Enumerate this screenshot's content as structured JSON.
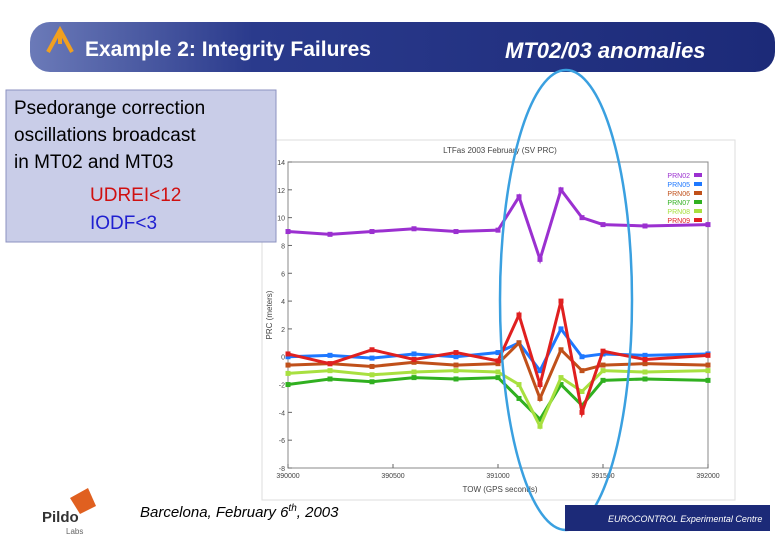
{
  "header": {
    "title": "Example 2: Integrity Failures",
    "subtitle": "MT02/03 anomalies"
  },
  "callout": {
    "lines": [
      "Psedorange correction",
      "oscillations broadcast",
      "in MT02 and MT03"
    ],
    "items": [
      "UDREI<12",
      "IODF<3"
    ]
  },
  "footer": {
    "place_date": "Barcelona, February 6",
    "ordinal": "th",
    "year": ", 2003"
  },
  "logos": {
    "left": "Pildo",
    "left_sub": "Labs",
    "right": "EUROCONTROL Experimental Centre"
  },
  "chart_data": {
    "type": "scatter",
    "title": "LTFas 2003 February (SV PRC)",
    "x_label": "TOW (GPS seconds)",
    "y_label": "PRC (meters)",
    "x": [
      390000,
      390200,
      390400,
      390600,
      390800,
      391000,
      391100,
      391200,
      391300,
      391400,
      391500,
      391700,
      392000
    ],
    "series": [
      {
        "name": "PRN02",
        "color": "#9b30d0",
        "values": [
          9,
          8.8,
          9,
          9.2,
          9,
          9.1,
          11.5,
          7,
          12,
          10,
          9.5,
          9.4,
          9.5
        ]
      },
      {
        "name": "PRN05",
        "color": "#1e78ff",
        "values": [
          0,
          0.1,
          -0.1,
          0.2,
          0,
          0.3,
          1,
          -1,
          2,
          0,
          0.2,
          0.1,
          0.2
        ]
      },
      {
        "name": "PRN06",
        "color": "#c0501a",
        "values": [
          -0.6,
          -0.5,
          -0.7,
          -0.4,
          -0.6,
          -0.5,
          1,
          -3,
          0.5,
          -1,
          -0.6,
          -0.5,
          -0.6
        ]
      },
      {
        "name": "PRN07",
        "color": "#30b020",
        "values": [
          -2,
          -1.6,
          -1.8,
          -1.5,
          -1.6,
          -1.5,
          -3,
          -4.5,
          -2,
          -3.5,
          -1.7,
          -1.6,
          -1.7
        ]
      },
      {
        "name": "PRN08",
        "color": "#a8e040",
        "values": [
          -1.2,
          -1,
          -1.3,
          -1.1,
          -1,
          -1.1,
          -2,
          -5,
          -1.5,
          -2.5,
          -1,
          -1.1,
          -1
        ]
      },
      {
        "name": "PRN09",
        "color": "#e02020",
        "values": [
          0.2,
          -0.5,
          0.5,
          -0.2,
          0.3,
          -0.3,
          3,
          -2,
          4,
          -4,
          0.4,
          -0.2,
          0.1
        ]
      }
    ],
    "xlim": [
      390000,
      392000
    ],
    "xticks": [
      390000,
      390500,
      391000,
      391500,
      392000
    ],
    "ylim": [
      -8,
      14
    ],
    "yticks": [
      -8,
      -6,
      -4,
      -2,
      0,
      2,
      4,
      6,
      8,
      10,
      12,
      14
    ]
  }
}
